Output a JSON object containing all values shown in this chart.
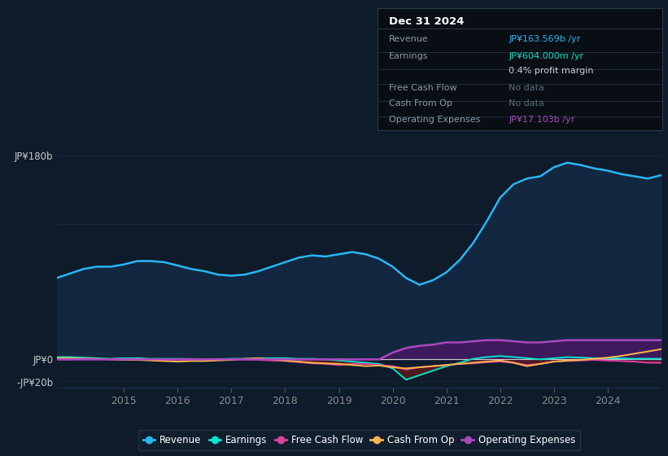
{
  "bg_color": "#0d1b2a",
  "plot_bg_color": "#0d1b2a",
  "grid_color": "#1e3050",
  "x_years": [
    2013.75,
    2014.0,
    2014.25,
    2014.5,
    2014.75,
    2015.0,
    2015.25,
    2015.5,
    2015.75,
    2016.0,
    2016.25,
    2016.5,
    2016.75,
    2017.0,
    2017.25,
    2017.5,
    2017.75,
    2018.0,
    2018.25,
    2018.5,
    2018.75,
    2019.0,
    2019.25,
    2019.5,
    2019.75,
    2020.0,
    2020.25,
    2020.5,
    2020.75,
    2021.0,
    2021.25,
    2021.5,
    2021.75,
    2022.0,
    2022.25,
    2022.5,
    2022.75,
    2023.0,
    2023.25,
    2023.5,
    2023.75,
    2024.0,
    2024.25,
    2024.5,
    2024.75,
    2025.0
  ],
  "revenue": [
    72,
    76,
    80,
    82,
    82,
    84,
    87,
    87,
    86,
    83,
    80,
    78,
    75,
    74,
    75,
    78,
    82,
    86,
    90,
    92,
    91,
    93,
    95,
    93,
    89,
    82,
    72,
    66,
    70,
    77,
    88,
    103,
    122,
    143,
    155,
    160,
    162,
    170,
    174,
    172,
    169,
    167,
    164,
    162,
    160,
    163
  ],
  "earnings": [
    2,
    2,
    1.5,
    1,
    0.5,
    1,
    1,
    0.5,
    0.5,
    0.5,
    0.3,
    0.2,
    0.2,
    0.5,
    0.5,
    1,
    1,
    1,
    0.5,
    0.5,
    0,
    -1,
    -2,
    -3,
    -4,
    -8,
    -18,
    -14,
    -10,
    -6,
    -3,
    0.5,
    2,
    3,
    2,
    1,
    0,
    1,
    2,
    1.5,
    1,
    1,
    0.8,
    0.5,
    0.6,
    0.6
  ],
  "free_cash_flow": [
    0,
    0,
    0.5,
    0.2,
    0.2,
    0,
    -0.3,
    -0.2,
    0,
    0,
    0.3,
    0.2,
    0,
    0,
    0,
    -0.5,
    -1,
    -1.5,
    -2.5,
    -3.5,
    -4,
    -5,
    -4,
    -4,
    -5,
    -6,
    -9,
    -7,
    -6,
    -5,
    -4,
    -3.5,
    -2.5,
    -2,
    -3,
    -5,
    -4,
    -2,
    -1.5,
    -1,
    -0.5,
    -1,
    -1.5,
    -2,
    -3,
    -3
  ],
  "cash_from_op": [
    1,
    1,
    0.5,
    0.5,
    0,
    -0.5,
    -0.5,
    -1,
    -1.5,
    -2,
    -1.5,
    -1.5,
    -1,
    -0.5,
    0.5,
    1,
    0,
    -1,
    -2,
    -3,
    -3.5,
    -4,
    -5,
    -6,
    -5.5,
    -7,
    -8,
    -7,
    -6,
    -5,
    -4,
    -3,
    -2,
    -1,
    -3,
    -6,
    -4,
    -2,
    -1,
    -0.5,
    0.5,
    1.5,
    3,
    5,
    7,
    9
  ],
  "operating_expenses": [
    0,
    0,
    0,
    0,
    0,
    0,
    0,
    0,
    0,
    0,
    0,
    0,
    0,
    0,
    0,
    0,
    0,
    0,
    0,
    0,
    0,
    0,
    0,
    0,
    0,
    6,
    10,
    12,
    13,
    15,
    15,
    16,
    17,
    17,
    16,
    15,
    15,
    16,
    17,
    17,
    17,
    17,
    17,
    17,
    17,
    17
  ],
  "ylim": [
    -25,
    205
  ],
  "yticks_vals": [
    -20,
    0,
    180
  ],
  "ytick_labels": [
    "-JP¥20b",
    "JP¥0",
    "JP¥180b"
  ],
  "xticks": [
    2015,
    2016,
    2017,
    2018,
    2019,
    2020,
    2021,
    2022,
    2023,
    2024
  ],
  "revenue_color": "#29b6f6",
  "earnings_color": "#00e5cc",
  "fcf_color": "#e040a0",
  "cashop_color": "#ffb74d",
  "opex_color": "#ab47bc",
  "revenue_fill": "#122840",
  "opex_fill": "#3d1a5c",
  "dark_red_fill": "#5a1a1a",
  "zero_line_color": "#cccccc",
  "info_box_bg": "#080e14",
  "info_box_border": "#2a3a4a",
  "info_box_sep": "#2a3a4a",
  "legend_bg": "#131f2e",
  "legend_border": "#2a3a4a",
  "date_label": "Dec 31 2024",
  "info_rows": [
    {
      "label": "Revenue",
      "value": "JP¥163.569b /yr",
      "color": "#29b6f6"
    },
    {
      "label": "Earnings",
      "value": "JP¥604.000m /yr",
      "color": "#00e5cc"
    },
    {
      "label": "",
      "value": "0.4% profit margin",
      "color": "#cccccc"
    },
    {
      "label": "Free Cash Flow",
      "value": "No data",
      "color": "#5a6a7a"
    },
    {
      "label": "Cash From Op",
      "value": "No data",
      "color": "#5a6a7a"
    },
    {
      "label": "Operating Expenses",
      "value": "JP¥17.103b /yr",
      "color": "#ab47bc"
    }
  ],
  "legend_items": [
    {
      "label": "Revenue",
      "color": "#29b6f6"
    },
    {
      "label": "Earnings",
      "color": "#00e5cc"
    },
    {
      "label": "Free Cash Flow",
      "color": "#e040a0"
    },
    {
      "label": "Cash From Op",
      "color": "#ffb74d"
    },
    {
      "label": "Operating Expenses",
      "color": "#ab47bc"
    }
  ]
}
